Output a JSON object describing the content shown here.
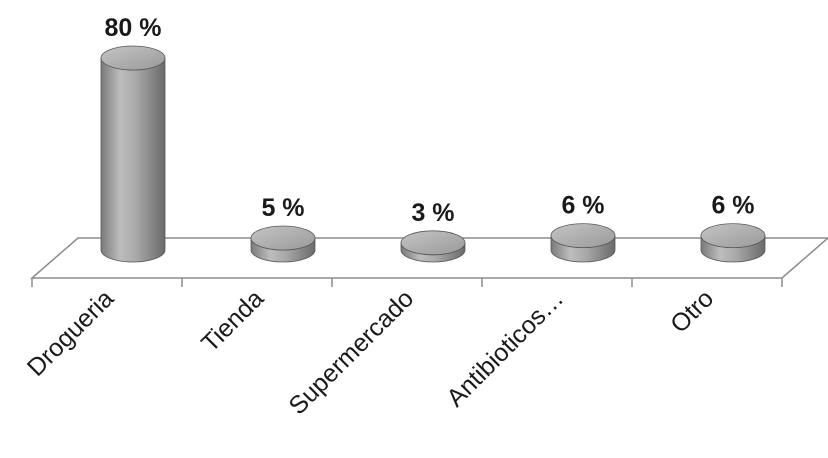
{
  "chart_data": {
    "type": "bar",
    "style": "3d-cylinder",
    "title": "",
    "xlabel": "",
    "ylabel": "",
    "categories": [
      "Drogueria",
      "Tienda",
      "Supermercado",
      "Antibioticos…",
      "Otro"
    ],
    "values": [
      80,
      5,
      3,
      6,
      6
    ],
    "labels": [
      "80 %",
      "5 %",
      "3 %",
      "6 %",
      "6 %"
    ],
    "ylim": [
      0,
      80
    ],
    "grid": false,
    "legend": "none",
    "bar_color": "#a6a6a6",
    "floor_color": "#ffffff",
    "axis_color": "#888888"
  }
}
